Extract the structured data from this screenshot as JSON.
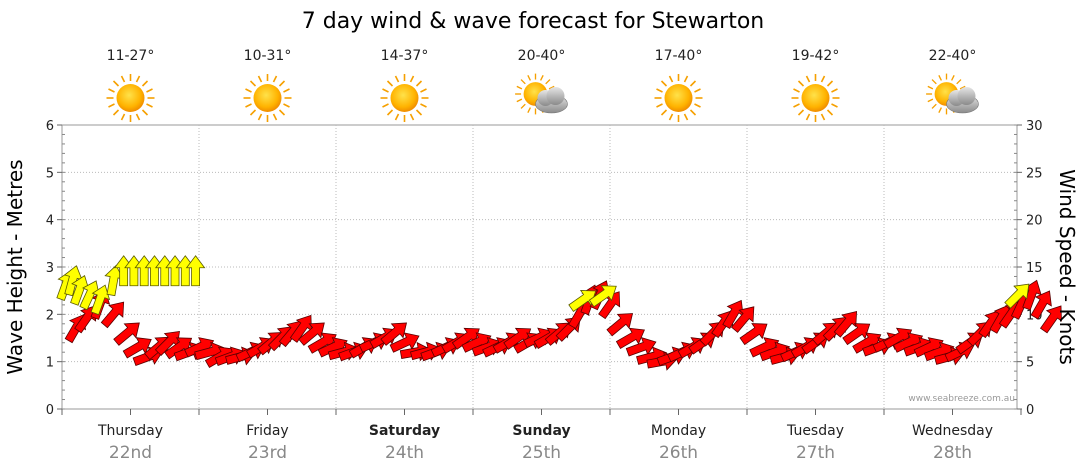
{
  "chart_data": {
    "type": "scatter",
    "title": "7 day wind & wave forecast for Stewarton",
    "y_left_label": "Wave Height - Metres",
    "y_right_label": "Wind Speed - Knots",
    "y_left_range": [
      0,
      6
    ],
    "y_left_ticks": [
      "0",
      "1",
      "2",
      "3",
      "4",
      "5",
      "6"
    ],
    "y_right_range": [
      0,
      30
    ],
    "y_right_ticks": [
      "0",
      "5",
      "10",
      "15",
      "20",
      "25",
      "30"
    ],
    "days": [
      {
        "name": "Thursday",
        "date": "22nd",
        "temp": "11-27°",
        "weather": "sunny",
        "bold": false
      },
      {
        "name": "Friday",
        "date": "23rd",
        "temp": "10-31°",
        "weather": "sunny",
        "bold": false
      },
      {
        "name": "Saturday",
        "date": "24th",
        "temp": "14-37°",
        "weather": "sunny",
        "bold": true
      },
      {
        "name": "Sunday",
        "date": "25th",
        "temp": "20-40°",
        "weather": "partly-cloudy",
        "bold": true
      },
      {
        "name": "Monday",
        "date": "26th",
        "temp": "17-40°",
        "weather": "sunny",
        "bold": false
      },
      {
        "name": "Tuesday",
        "date": "27th",
        "temp": "19-42°",
        "weather": "sunny",
        "bold": false
      },
      {
        "name": "Wednesday",
        "date": "28th",
        "temp": "22-40°",
        "weather": "partly-cloudy",
        "bold": false
      }
    ],
    "credit": "www.seabreeze.com.au",
    "series": [
      {
        "name": "Wind",
        "color": "#ff0000",
        "points": [
          [
            0.2,
            8.5,
            210
          ],
          [
            0.35,
            9.5,
            215
          ],
          [
            0.55,
            11.0,
            200
          ],
          [
            0.75,
            10.0,
            220
          ],
          [
            0.95,
            8.0,
            230
          ],
          [
            1.1,
            6.5,
            240
          ],
          [
            1.25,
            5.5,
            250
          ],
          [
            1.4,
            6.5,
            230
          ],
          [
            1.55,
            7.0,
            225
          ],
          [
            1.7,
            6.5,
            235
          ],
          [
            1.85,
            6.0,
            250
          ],
          [
            2.0,
            6.5,
            245
          ],
          [
            2.15,
            6.0,
            255
          ],
          [
            2.3,
            5.5,
            240
          ],
          [
            2.45,
            5.5,
            250
          ],
          [
            2.6,
            5.5,
            255
          ],
          [
            2.75,
            6.0,
            245
          ],
          [
            2.9,
            6.5,
            240
          ],
          [
            3.05,
            7.0,
            230
          ],
          [
            3.2,
            7.5,
            225
          ],
          [
            3.35,
            8.0,
            220
          ],
          [
            3.5,
            8.5,
            215
          ],
          [
            3.65,
            8.0,
            230
          ],
          [
            3.8,
            7.0,
            240
          ],
          [
            3.95,
            6.5,
            245
          ],
          [
            4.1,
            6.0,
            255
          ],
          [
            4.25,
            6.0,
            250
          ],
          [
            4.4,
            6.5,
            240
          ],
          [
            4.55,
            7.0,
            245
          ],
          [
            4.7,
            7.5,
            240
          ],
          [
            4.85,
            8.0,
            230
          ],
          [
            5.0,
            7.0,
            245
          ],
          [
            5.15,
            6.0,
            260
          ],
          [
            5.3,
            6.0,
            255
          ],
          [
            5.45,
            6.0,
            250
          ],
          [
            5.6,
            6.5,
            245
          ],
          [
            5.75,
            7.0,
            240
          ],
          [
            5.9,
            7.5,
            235
          ],
          [
            6.05,
            7.0,
            245
          ],
          [
            6.2,
            6.5,
            250
          ],
          [
            6.35,
            6.5,
            245
          ],
          [
            6.5,
            7.0,
            240
          ],
          [
            6.65,
            7.5,
            235
          ],
          [
            6.8,
            7.0,
            240
          ],
          [
            6.95,
            7.5,
            245
          ],
          [
            7.1,
            7.5,
            240
          ],
          [
            7.25,
            8.0,
            230
          ],
          [
            7.4,
            8.5,
            225
          ],
          [
            7.55,
            10.0,
            210
          ],
          [
            7.7,
            11.5,
            200
          ],
          [
            7.85,
            12.0,
            205
          ],
          [
            8.0,
            11.0,
            215
          ],
          [
            8.15,
            9.0,
            230
          ],
          [
            8.3,
            7.5,
            240
          ],
          [
            8.45,
            6.5,
            250
          ],
          [
            8.6,
            5.5,
            255
          ],
          [
            8.75,
            5.0,
            260
          ],
          [
            8.9,
            5.5,
            250
          ],
          [
            9.05,
            6.0,
            245
          ],
          [
            9.2,
            6.5,
            240
          ],
          [
            9.35,
            7.0,
            235
          ],
          [
            9.5,
            8.0,
            225
          ],
          [
            9.65,
            9.0,
            215
          ],
          [
            9.8,
            10.0,
            210
          ],
          [
            9.95,
            9.5,
            220
          ],
          [
            10.1,
            8.0,
            235
          ],
          [
            10.25,
            6.5,
            245
          ],
          [
            10.4,
            6.0,
            250
          ],
          [
            10.55,
            5.5,
            255
          ],
          [
            10.7,
            6.0,
            245
          ],
          [
            10.85,
            6.5,
            240
          ],
          [
            11.0,
            7.0,
            235
          ],
          [
            11.15,
            8.0,
            230
          ],
          [
            11.3,
            8.5,
            225
          ],
          [
            11.45,
            9.0,
            220
          ],
          [
            11.6,
            8.0,
            235
          ],
          [
            11.75,
            7.0,
            240
          ],
          [
            11.9,
            6.5,
            250
          ],
          [
            12.05,
            7.0,
            245
          ],
          [
            12.2,
            7.5,
            240
          ],
          [
            12.35,
            7.0,
            245
          ],
          [
            12.5,
            6.5,
            250
          ],
          [
            12.65,
            6.5,
            245
          ],
          [
            12.8,
            6.0,
            250
          ],
          [
            12.95,
            5.5,
            255
          ],
          [
            13.1,
            6.0,
            245
          ],
          [
            13.25,
            7.0,
            235
          ],
          [
            13.4,
            8.0,
            225
          ],
          [
            13.55,
            9.0,
            215
          ],
          [
            13.7,
            9.5,
            210
          ],
          [
            13.85,
            10.0,
            215
          ],
          [
            14.0,
            11.0,
            205
          ],
          [
            14.15,
            12.0,
            200
          ],
          [
            14.3,
            11.0,
            210
          ],
          [
            14.45,
            9.5,
            215
          ]
        ]
      },
      {
        "name": "Wave",
        "color": "#ffff00",
        "points": [
          [
            0.05,
            2.6,
            200
          ],
          [
            0.15,
            2.7,
            195
          ],
          [
            0.25,
            2.5,
            200
          ],
          [
            0.4,
            2.4,
            205
          ],
          [
            0.55,
            2.3,
            200
          ],
          [
            0.75,
            2.7,
            190
          ],
          [
            0.9,
            2.9,
            180
          ],
          [
            1.05,
            2.9,
            180
          ],
          [
            1.2,
            2.9,
            180
          ],
          [
            1.35,
            2.9,
            180
          ],
          [
            1.5,
            2.9,
            180
          ],
          [
            1.65,
            2.9,
            180
          ],
          [
            1.8,
            2.9,
            180
          ],
          [
            1.95,
            2.9,
            180
          ],
          [
            7.6,
            2.3,
            235
          ],
          [
            7.9,
            2.4,
            235
          ],
          [
            13.95,
            2.4,
            225
          ]
        ]
      }
    ]
  }
}
